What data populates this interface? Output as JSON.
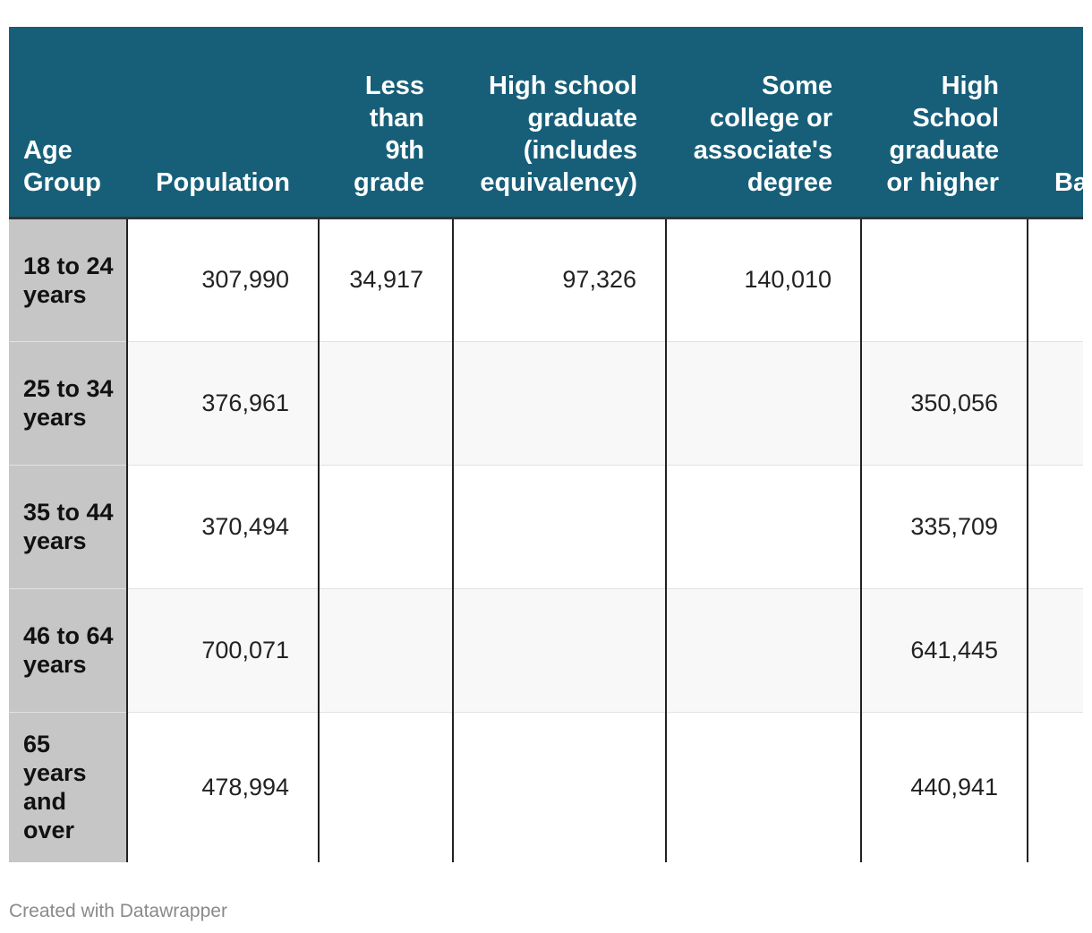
{
  "chart_data": {
    "type": "table",
    "columns": [
      "Age Group",
      "Population",
      "Less than 9th grade",
      "High school graduate (includes equivalency)",
      "Some college or associate's degree",
      "High School graduate or higher",
      "Ba de"
    ],
    "rows": [
      [
        "18 to 24 years",
        "307,990",
        "34,917",
        "97,326",
        "140,010",
        "",
        ""
      ],
      [
        "25 to 34 years",
        "376,961",
        "",
        "",
        "",
        "350,056",
        ""
      ],
      [
        "35 to 44 years",
        "370,494",
        "",
        "",
        "",
        "335,709",
        ""
      ],
      [
        "46 to 64 years",
        "700,071",
        "",
        "",
        "",
        "641,445",
        ""
      ],
      [
        "65 years and over",
        "478,994",
        "",
        "",
        "",
        "440,941",
        ""
      ]
    ]
  },
  "footer": {
    "credit": "Created with Datawrapper"
  }
}
